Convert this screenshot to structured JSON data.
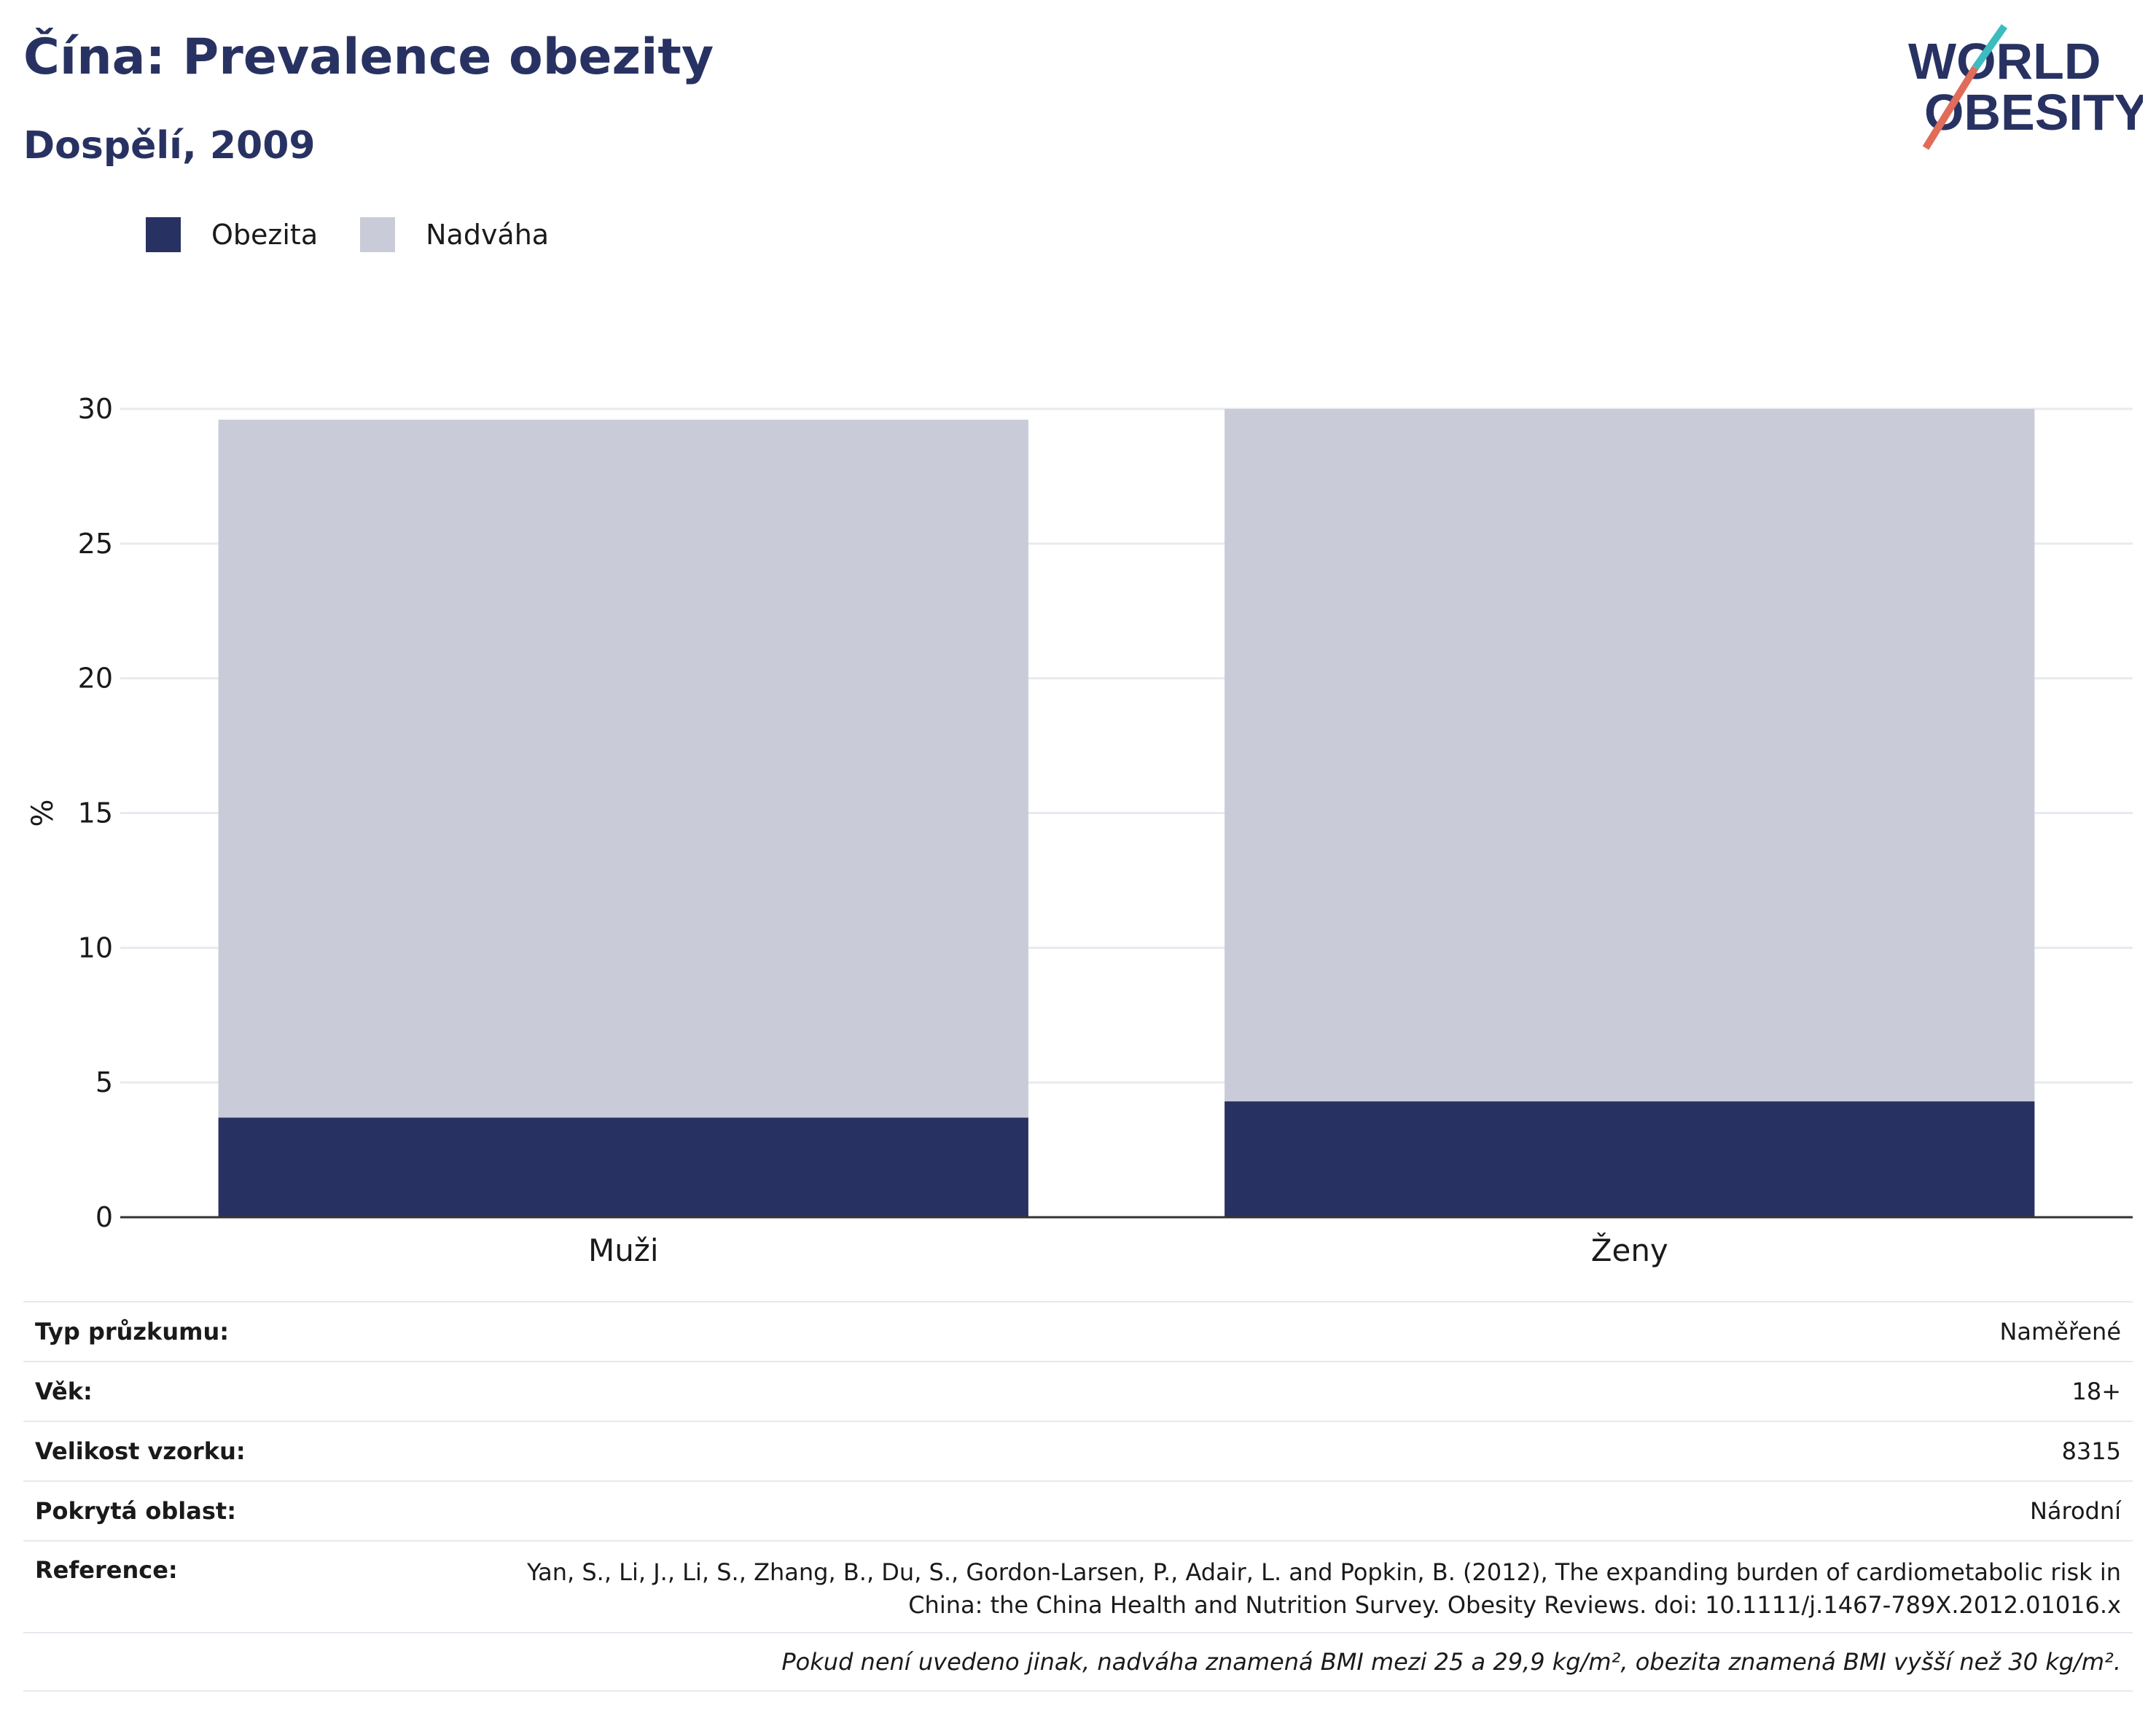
{
  "header": {
    "title": "Čína: Prevalence obezity",
    "subtitle": "Dospělí, 2009"
  },
  "logo": {
    "line1": "WORLD",
    "line2": "OBESITY",
    "colors": {
      "text": "#283262",
      "slash_red": "#e06c5a",
      "slash_teal": "#3cbcbf"
    }
  },
  "chart_data": {
    "type": "bar",
    "stacked": true,
    "categories": [
      "Muži",
      "Ženy"
    ],
    "series": [
      {
        "name": "Obezita",
        "color": "#283262",
        "values": [
          3.7,
          4.3
        ]
      },
      {
        "name": "Nadváha",
        "color": "#c9ccd8",
        "values": [
          25.9,
          25.7
        ]
      }
    ],
    "ylabel": "%",
    "ylim": [
      0,
      30
    ],
    "yticks": [
      0,
      5,
      10,
      15,
      20,
      25,
      30
    ],
    "grid": true,
    "legend": "top-left"
  },
  "meta": {
    "rows": [
      {
        "label": "Typ průzkumu:",
        "value": "Naměřené"
      },
      {
        "label": "Věk:",
        "value": "18+"
      },
      {
        "label": "Velikost vzorku:",
        "value": "8315"
      },
      {
        "label": "Pokrytá oblast:",
        "value": "Národní"
      },
      {
        "label": "Reference:",
        "value": "Yan, S., Li, J., Li, S., Zhang, B., Du, S., Gordon-Larsen, P., Adair, L. and Popkin, B. (2012), The expanding burden of cardiometabolic risk in China: the China Health and Nutrition Survey. Obesity Reviews. doi: 10.1111/j.1467-789X.2012.01016.x"
      }
    ],
    "footnote": "Pokud není uvedeno jinak, nadváha znamená BMI mezi 25 a 29,9 kg/m², obezita znamená BMI vyšší než 30 kg/m²."
  }
}
